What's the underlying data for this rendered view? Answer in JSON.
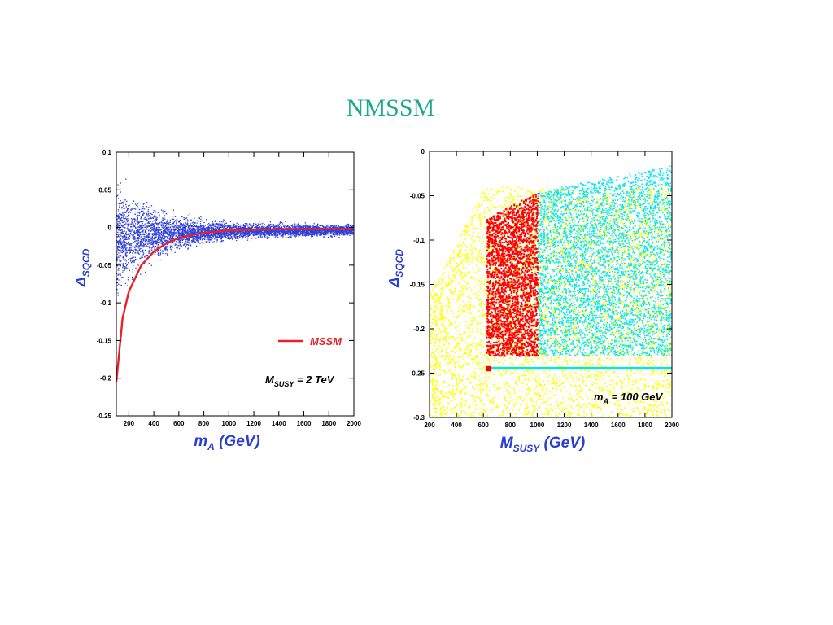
{
  "slide": {
    "title": "NMSSM",
    "title_color": "#1aaa8a"
  },
  "chart_data": [
    {
      "type": "scatter",
      "xlabel": {
        "main": "m",
        "sub": "A",
        "unit": "(GeV)"
      },
      "ylabel": {
        "main": "Δ",
        "sub": "SQCD"
      },
      "xlim": [
        100,
        2000
      ],
      "ylim": [
        -0.25,
        0.1
      ],
      "x_ticks": [
        200,
        400,
        600,
        800,
        1000,
        1200,
        1400,
        1600,
        1800,
        2000
      ],
      "y_ticks": [
        0.1,
        0.05,
        0,
        -0.05,
        -0.1,
        -0.15,
        -0.2,
        -0.25
      ],
      "y_tick_labels": [
        "0.1",
        "0.05",
        "0",
        "-0.05",
        "-0.1",
        "-0.15",
        "-0.2",
        "-0.25"
      ],
      "legend": {
        "entries": [
          {
            "name": "MSSM",
            "color": "#e8202a"
          }
        ],
        "placement": "right"
      },
      "annotation": {
        "main": "M",
        "sub": "SUSY",
        "rest": " = 2 TeV"
      },
      "series": [
        {
          "style": "scatter",
          "color": "#2f3fd8",
          "description_points": [
            [
              150,
              -0.03
            ],
            [
              200,
              -0.05
            ],
            [
              300,
              -0.02
            ],
            [
              400,
              -0.01
            ],
            [
              500,
              -0.015
            ],
            [
              600,
              -0.005
            ],
            [
              800,
              0.0
            ],
            [
              1000,
              0.0
            ],
            [
              1500,
              0.0
            ],
            [
              2000,
              0.0
            ]
          ]
        },
        {
          "name": "MSSM",
          "style": "line",
          "color": "#e8202a",
          "x": [
            100,
            150,
            200,
            300,
            400,
            500,
            600,
            700,
            800,
            1000,
            1200,
            1500,
            2000
          ],
          "y": [
            -0.205,
            -0.12,
            -0.085,
            -0.05,
            -0.032,
            -0.021,
            -0.014,
            -0.01,
            -0.007,
            -0.004,
            -0.003,
            -0.002,
            -0.002
          ]
        }
      ]
    },
    {
      "type": "scatter",
      "xlabel": {
        "main": "M",
        "sub": "SUSY",
        "unit": "(GeV)"
      },
      "ylabel": {
        "main": "Δ",
        "sub": "SQCD"
      },
      "xlim": [
        200,
        2000
      ],
      "ylim": [
        -0.3,
        0
      ],
      "x_ticks": [
        200,
        400,
        600,
        800,
        1000,
        1200,
        1400,
        1600,
        1800,
        2000
      ],
      "y_ticks": [
        0,
        -0.05,
        -0.1,
        -0.15,
        -0.2,
        -0.25,
        -0.3
      ],
      "y_tick_labels": [
        "0",
        "-0.05",
        "-0.1",
        "-0.15",
        "-0.2",
        "-0.25",
        "-0.3"
      ],
      "annotation": {
        "main": "m",
        "sub": "A",
        "rest": " = 100 GeV"
      },
      "regions": [
        {
          "color": "#ffff00",
          "x_range": [
            200,
            2000
          ],
          "y_range": [
            -0.3,
            -0.01
          ]
        },
        {
          "color": "#ff0000",
          "x_range": [
            620,
            1000
          ],
          "y_range": [
            -0.23,
            -0.045
          ]
        },
        {
          "color": "#00e5ee",
          "x_range": [
            1000,
            2000
          ],
          "y_range": [
            -0.23,
            -0.015
          ]
        },
        {
          "color": "#00e5ee",
          "x_range": [
            660,
            2000
          ],
          "y_range": [
            -0.246,
            -0.243
          ]
        }
      ]
    }
  ]
}
